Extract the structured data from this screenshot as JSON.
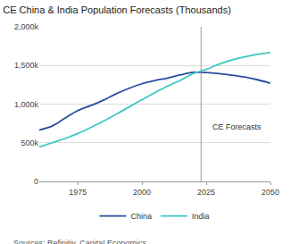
{
  "chart_data": {
    "type": "line",
    "title": "CE China & India Population Forecasts (Thousands)",
    "source": "Sources: Refinitiv, Capital Economics",
    "x": [
      1960,
      1965,
      1970,
      1975,
      1980,
      1985,
      1990,
      1995,
      2000,
      2005,
      2010,
      2015,
      2020,
      2025,
      2030,
      2035,
      2040,
      2045,
      2050
    ],
    "series": [
      {
        "name": "China",
        "color": "#2a4d9c",
        "values": [
          667000,
          715000,
          818000,
          916000,
          981000,
          1051000,
          1135000,
          1205000,
          1263000,
          1304000,
          1338000,
          1379000,
          1411000,
          1408000,
          1395000,
          1375000,
          1350000,
          1315000,
          1270000
        ]
      },
      {
        "name": "India",
        "color": "#3cc8bf",
        "values": [
          445000,
          500000,
          555000,
          620000,
          697000,
          780000,
          870000,
          964000,
          1057000,
          1148000,
          1234000,
          1310000,
          1396000,
          1450000,
          1515000,
          1570000,
          1612000,
          1645000,
          1670000
        ]
      }
    ],
    "xlim": [
      1960,
      2050
    ],
    "xticks": [
      1975,
      2000,
      2025,
      2050
    ],
    "ylim": [
      0,
      2000000
    ],
    "yticks": [
      0,
      {
        "value": 500000,
        "label": "500k"
      },
      {
        "value": 1000000,
        "label": "1,000k"
      },
      {
        "value": 1500000,
        "label": "1,500k"
      },
      {
        "value": 2000000,
        "label": "2,000k"
      }
    ],
    "forecast_line": 2023,
    "annotations": [
      {
        "text": "CE Forecasts",
        "x": 2037,
        "y": 700000
      }
    ],
    "grid": true,
    "legend": "bottom"
  }
}
